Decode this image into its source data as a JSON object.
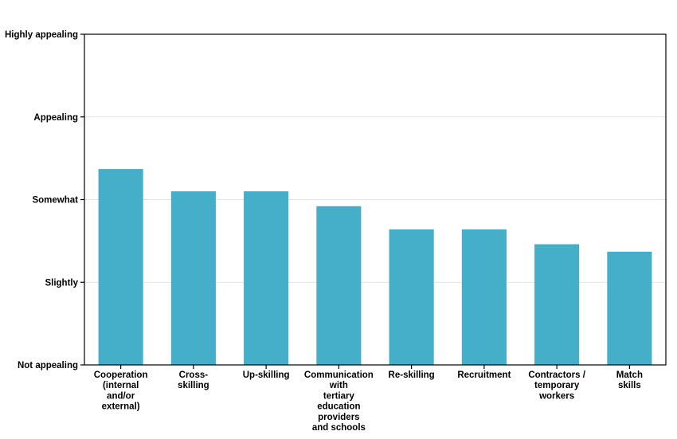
{
  "chart_data": {
    "type": "bar",
    "categories": [
      [
        "Cooperation",
        "(internal",
        "and/or",
        "external)"
      ],
      [
        "Cross-",
        "skilling"
      ],
      [
        "Up-skilling"
      ],
      [
        "Communication",
        "with",
        "tertiary",
        "education",
        "providers",
        "and schools"
      ],
      [
        "Re-skilling"
      ],
      [
        "Recruitment"
      ],
      [
        "Contractors /",
        "temporary",
        "workers"
      ],
      [
        "Match",
        "skills"
      ]
    ],
    "values": [
      2.37,
      2.1,
      2.1,
      1.92,
      1.64,
      1.64,
      1.46,
      1.37
    ],
    "y_tick_labels": [
      "Not appealing",
      "Slightly",
      "Somewhat",
      "Appealing",
      "Highly appealing"
    ],
    "ylim": [
      0,
      4
    ],
    "title": "",
    "xlabel": "",
    "ylabel": "",
    "grid": "horizontal",
    "bar_color": "#45aec9",
    "grid_color": "#e3e3e3",
    "axis_color": "#000000"
  }
}
